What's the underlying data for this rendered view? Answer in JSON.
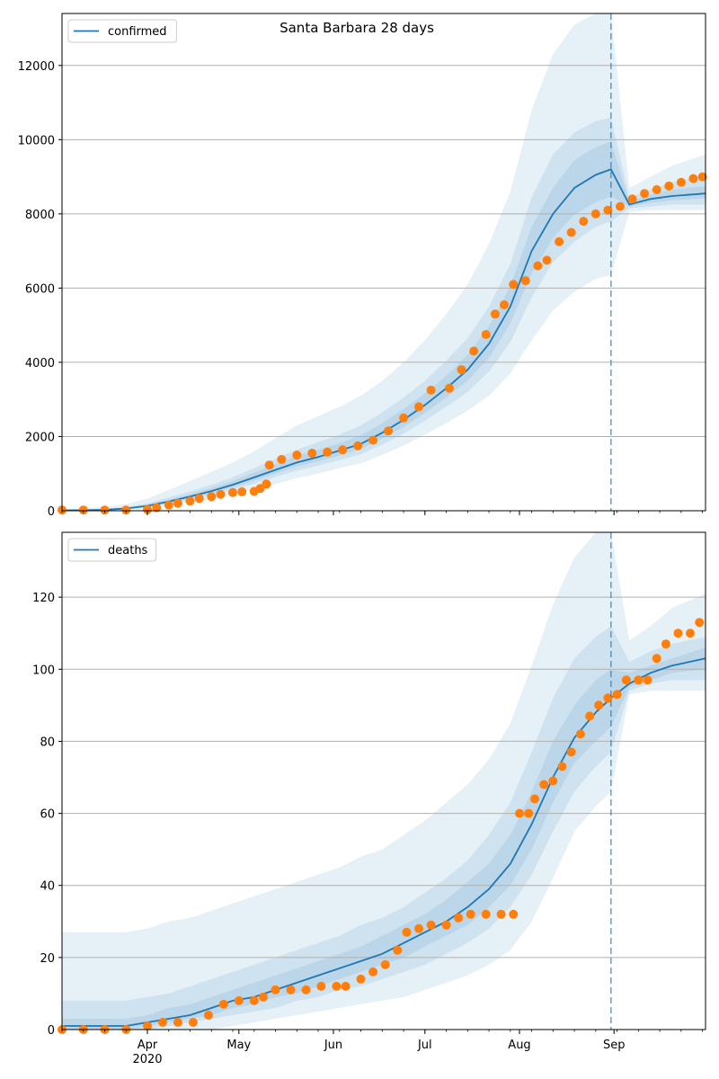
{
  "title": "Santa Barbara 28 days",
  "colors": {
    "model": "#1f77b4",
    "observed": "#ff7f0e",
    "band": "#1f77b4",
    "grid": "#b0b0b0"
  },
  "x_axis": {
    "ticks": [
      {
        "day": 31,
        "label": "Apr"
      },
      {
        "day": 61,
        "label": "May"
      },
      {
        "day": 92,
        "label": "Jun"
      },
      {
        "day": 122,
        "label": "Jul"
      },
      {
        "day": 153,
        "label": "Aug"
      },
      {
        "day": 184,
        "label": "Sep"
      }
    ],
    "year_label": "2020"
  },
  "chart_data": [
    {
      "type": "line",
      "name": "confirmed",
      "legend": "confirmed",
      "legend_position": "top-left",
      "grid": true,
      "forecast_start": "Aug 30",
      "x_range": [
        "Mar 3",
        "Sep 30"
      ],
      "ylim": [
        0,
        13400
      ],
      "yticks": [
        0,
        2000,
        4000,
        6000,
        8000,
        10000,
        12000
      ],
      "median": {
        "x": [
          "Mar 3",
          "Mar 10",
          "Mar 17",
          "Mar 24",
          "Mar 31",
          "Apr 7",
          "Apr 14",
          "Apr 21",
          "Apr 28",
          "May 5",
          "May 12",
          "May 19",
          "May 26",
          "Jun 2",
          "Jun 9",
          "Jun 16",
          "Jun 23",
          "Jun 30",
          "Jul 7",
          "Jul 14",
          "Jul 21",
          "Jul 28",
          "Aug 4",
          "Aug 11",
          "Aug 18",
          "Aug 25",
          "Aug 30",
          "Sep 5",
          "Sep 12",
          "Sep 19",
          "Sep 30"
        ],
        "y": [
          10,
          15,
          25,
          60,
          130,
          250,
          380,
          530,
          700,
          900,
          1100,
          1300,
          1450,
          1620,
          1800,
          2100,
          2450,
          2850,
          3300,
          3800,
          4500,
          5500,
          7000,
          8000,
          8700,
          9050,
          9200,
          8250,
          8400,
          8480,
          8550
        ]
      },
      "bands": [
        {
          "level": "outer",
          "x": [
            "Mar 3",
            "Mar 10",
            "Mar 17",
            "Mar 24",
            "Mar 31",
            "Apr 7",
            "Apr 14",
            "Apr 21",
            "Apr 28",
            "May 5",
            "May 12",
            "May 19",
            "May 26",
            "Jun 2",
            "Jun 9",
            "Jun 16",
            "Jun 23",
            "Jun 30",
            "Jul 7",
            "Jul 14",
            "Jul 21",
            "Jul 28",
            "Aug 4",
            "Aug 11",
            "Aug 18",
            "Aug 25",
            "Aug 30",
            "Sep 5",
            "Sep 12",
            "Sep 19",
            "Sep 30"
          ],
          "low": [
            0,
            0,
            0,
            20,
            60,
            130,
            220,
            320,
            430,
            560,
            720,
            880,
            1000,
            1150,
            1280,
            1500,
            1760,
            2050,
            2360,
            2700,
            3100,
            3700,
            4600,
            5400,
            5900,
            6250,
            6350,
            8050,
            8100,
            8100,
            8100
          ],
          "high": [
            40,
            60,
            100,
            180,
            330,
            560,
            800,
            1050,
            1300,
            1600,
            1950,
            2300,
            2550,
            2800,
            3100,
            3500,
            4000,
            4600,
            5300,
            6100,
            7200,
            8600,
            10800,
            12300,
            13100,
            13400,
            13400,
            8700,
            9000,
            9300,
            9600
          ]
        },
        {
          "level": "middle",
          "x": [
            "Mar 3",
            "Mar 10",
            "Mar 17",
            "Mar 24",
            "Mar 31",
            "Apr 7",
            "Apr 14",
            "Apr 21",
            "Apr 28",
            "May 5",
            "May 12",
            "May 19",
            "May 26",
            "Jun 2",
            "Jun 9",
            "Jun 16",
            "Jun 23",
            "Jun 30",
            "Jul 7",
            "Jul 14",
            "Jul 21",
            "Jul 28",
            "Aug 4",
            "Aug 11",
            "Aug 18",
            "Aug 25",
            "Aug 30",
            "Sep 5",
            "Sep 12",
            "Sep 19",
            "Sep 30"
          ],
          "low": [
            0,
            5,
            12,
            40,
            90,
            180,
            290,
            420,
            560,
            730,
            910,
            1080,
            1220,
            1370,
            1520,
            1780,
            2080,
            2430,
            2800,
            3200,
            3750,
            4550,
            5750,
            6700,
            7250,
            7650,
            7800,
            8150,
            8200,
            8250,
            8250
          ],
          "high": [
            20,
            30,
            50,
            100,
            200,
            360,
            520,
            700,
            900,
            1150,
            1400,
            1650,
            1850,
            2050,
            2300,
            2650,
            3050,
            3500,
            4050,
            4650,
            5500,
            6650,
            8450,
            9600,
            10200,
            10500,
            10600,
            8450,
            8650,
            8850,
            9050
          ]
        },
        {
          "level": "inner",
          "x": [
            "Mar 3",
            "Mar 10",
            "Mar 17",
            "Mar 24",
            "Mar 31",
            "Apr 7",
            "Apr 14",
            "Apr 21",
            "Apr 28",
            "May 5",
            "May 12",
            "May 19",
            "May 26",
            "Jun 2",
            "Jun 9",
            "Jun 16",
            "Jun 23",
            "Jun 30",
            "Jul 7",
            "Jul 14",
            "Jul 21",
            "Jul 28",
            "Aug 4",
            "Aug 11",
            "Aug 18",
            "Aug 25",
            "Aug 30",
            "Sep 5",
            "Sep 12",
            "Sep 19",
            "Sep 30"
          ],
          "low": [
            5,
            10,
            20,
            50,
            110,
            215,
            335,
            475,
            630,
            815,
            1000,
            1190,
            1330,
            1490,
            1660,
            1940,
            2260,
            2640,
            3050,
            3500,
            4120,
            5050,
            6400,
            7350,
            7980,
            8320,
            8470,
            8200,
            8300,
            8360,
            8420
          ],
          "high": [
            15,
            22,
            35,
            75,
            160,
            300,
            450,
            610,
            800,
            1030,
            1250,
            1480,
            1640,
            1820,
            2030,
            2360,
            2740,
            3160,
            3640,
            4200,
            4970,
            6050,
            7650,
            8700,
            9450,
            9800,
            9950,
            8320,
            8520,
            8650,
            8750
          ]
        }
      ],
      "observed": {
        "x": [
          "Mar 3",
          "Mar 10",
          "Mar 17",
          "Mar 24",
          "Mar 31",
          "Apr 3",
          "Apr 7",
          "Apr 10",
          "Apr 14",
          "Apr 17",
          "Apr 21",
          "Apr 24",
          "Apr 28",
          "May 1",
          "May 5",
          "May 7",
          "May 9",
          "May 10",
          "May 14",
          "May 19",
          "May 24",
          "May 29",
          "Jun 3",
          "Jun 8",
          "Jun 13",
          "Jun 18",
          "Jun 23",
          "Jun 28",
          "Jul 2",
          "Jul 8",
          "Jul 12",
          "Jul 16",
          "Jul 20",
          "Jul 23",
          "Jul 26",
          "Jul 29",
          "Aug 2",
          "Aug 6",
          "Aug 9",
          "Aug 13",
          "Aug 17",
          "Aug 21",
          "Aug 25",
          "Aug 29",
          "Sep 2",
          "Sep 6",
          "Sep 10",
          "Sep 14",
          "Sep 18",
          "Sep 22",
          "Sep 26",
          "Sep 29"
        ],
        "y": [
          20,
          20,
          20,
          20,
          30,
          80,
          150,
          200,
          260,
          330,
          380,
          440,
          490,
          510,
          520,
          600,
          720,
          1230,
          1380,
          1500,
          1550,
          1580,
          1640,
          1750,
          1900,
          2150,
          2500,
          2800,
          3250,
          3300,
          3800,
          4300,
          4750,
          5300,
          5550,
          6100,
          6200,
          6600,
          6750,
          7250,
          7500,
          7800,
          8000,
          8100,
          8200,
          8400,
          8550,
          8650,
          8750,
          8850,
          8950,
          9000
        ]
      }
    },
    {
      "type": "line",
      "name": "deaths",
      "legend": "deaths",
      "legend_position": "top-left",
      "grid": true,
      "forecast_start": "Aug 30",
      "x_range": [
        "Mar 3",
        "Sep 30"
      ],
      "ylim": [
        0,
        138
      ],
      "yticks": [
        0,
        20,
        40,
        60,
        80,
        100,
        120
      ],
      "median": {
        "x": [
          "Mar 3",
          "Mar 10",
          "Mar 17",
          "Mar 24",
          "Mar 31",
          "Apr 7",
          "Apr 14",
          "Apr 21",
          "Apr 28",
          "May 5",
          "May 12",
          "May 19",
          "May 26",
          "Jun 2",
          "Jun 9",
          "Jun 16",
          "Jun 23",
          "Jun 30",
          "Jul 7",
          "Jul 14",
          "Jul 21",
          "Jul 28",
          "Aug 4",
          "Aug 11",
          "Aug 18",
          "Aug 25",
          "Aug 30",
          "Sep 5",
          "Sep 12",
          "Sep 19",
          "Sep 30"
        ],
        "y": [
          1,
          1,
          1,
          1,
          2,
          3,
          4,
          6,
          8,
          9,
          11,
          13,
          15,
          17,
          19,
          21,
          24,
          27,
          30,
          34,
          39,
          46,
          57,
          70,
          81,
          88,
          92,
          96,
          99,
          101,
          103
        ]
      },
      "bands": [
        {
          "level": "outer",
          "x": [
            "Mar 3",
            "Mar 10",
            "Mar 17",
            "Mar 24",
            "Mar 31",
            "Apr 7",
            "Apr 14",
            "Apr 21",
            "Apr 28",
            "May 5",
            "May 12",
            "May 19",
            "May 26",
            "Jun 2",
            "Jun 9",
            "Jun 16",
            "Jun 23",
            "Jun 30",
            "Jul 7",
            "Jul 14",
            "Jul 21",
            "Jul 28",
            "Aug 4",
            "Aug 11",
            "Aug 18",
            "Aug 25",
            "Aug 30",
            "Sep 5",
            "Sep 12",
            "Sep 19",
            "Sep 30"
          ],
          "low": [
            0,
            0,
            0,
            0,
            0,
            0,
            0,
            0,
            1,
            2,
            3,
            4,
            5,
            6,
            7,
            8,
            9,
            11,
            13,
            15,
            18,
            22,
            30,
            42,
            55,
            62,
            66,
            93,
            94,
            94,
            94
          ],
          "high": [
            27,
            27,
            27,
            27,
            28,
            30,
            31,
            33,
            35,
            37,
            39,
            41,
            43,
            45,
            48,
            50,
            54,
            58,
            63,
            68,
            75,
            85,
            101,
            118,
            131,
            138,
            138,
            108,
            112,
            117,
            121
          ]
        },
        {
          "level": "middle",
          "x": [
            "Mar 3",
            "Mar 10",
            "Mar 17",
            "Mar 24",
            "Mar 31",
            "Apr 7",
            "Apr 14",
            "Apr 21",
            "Apr 28",
            "May 5",
            "May 12",
            "May 19",
            "May 26",
            "Jun 2",
            "Jun 9",
            "Jun 16",
            "Jun 23",
            "Jun 30",
            "Jul 7",
            "Jul 14",
            "Jul 21",
            "Jul 28",
            "Aug 4",
            "Aug 11",
            "Aug 18",
            "Aug 25",
            "Aug 30",
            "Sep 5",
            "Sep 12",
            "Sep 19",
            "Sep 30"
          ],
          "low": [
            0,
            0,
            0,
            0,
            0,
            1,
            2,
            3,
            4,
            5,
            6,
            8,
            9,
            11,
            12,
            14,
            16,
            18,
            21,
            24,
            28,
            34,
            43,
            55,
            66,
            73,
            77,
            94,
            96,
            97,
            97
          ],
          "high": [
            8,
            8,
            8,
            8,
            9,
            10,
            12,
            14,
            16,
            18,
            20,
            22,
            24,
            26,
            29,
            31,
            34,
            38,
            42,
            47,
            54,
            63,
            77,
            92,
            103,
            109,
            112,
            102,
            105,
            107,
            109
          ]
        },
        {
          "level": "inner",
          "x": [
            "Mar 3",
            "Mar 10",
            "Mar 17",
            "Mar 24",
            "Mar 31",
            "Apr 7",
            "Apr 14",
            "Apr 21",
            "Apr 28",
            "May 5",
            "May 12",
            "May 19",
            "May 26",
            "Jun 2",
            "Jun 9",
            "Jun 16",
            "Jun 23",
            "Jun 30",
            "Jul 7",
            "Jul 14",
            "Jul 21",
            "Jul 28",
            "Aug 4",
            "Aug 11",
            "Aug 18",
            "Aug 25",
            "Aug 30",
            "Sep 5",
            "Sep 12",
            "Sep 19",
            "Sep 30"
          ],
          "low": [
            0,
            0,
            0,
            0,
            1,
            2,
            3,
            4,
            6,
            7,
            9,
            10,
            12,
            14,
            16,
            18,
            20,
            23,
            26,
            29,
            34,
            40,
            50,
            63,
            74,
            80,
            84,
            95,
            97,
            99,
            100
          ],
          "high": [
            3,
            3,
            3,
            3,
            4,
            6,
            7,
            9,
            11,
            13,
            15,
            17,
            19,
            21,
            23,
            26,
            29,
            32,
            36,
            41,
            46,
            54,
            66,
            80,
            90,
            97,
            100,
            99,
            101,
            103,
            106
          ]
        }
      ],
      "observed": {
        "x": [
          "Mar 3",
          "Mar 10",
          "Mar 17",
          "Mar 24",
          "Mar 31",
          "Apr 5",
          "Apr 10",
          "Apr 15",
          "Apr 20",
          "Apr 25",
          "Apr 30",
          "May 5",
          "May 8",
          "May 12",
          "May 17",
          "May 22",
          "May 27",
          "Jun 1",
          "Jun 4",
          "Jun 9",
          "Jun 13",
          "Jun 17",
          "Jun 21",
          "Jun 24",
          "Jun 28",
          "Jul 2",
          "Jul 7",
          "Jul 11",
          "Jul 15",
          "Jul 20",
          "Jul 25",
          "Jul 29",
          "Jul 31",
          "Aug 3",
          "Aug 5",
          "Aug 8",
          "Aug 11",
          "Aug 14",
          "Aug 17",
          "Aug 20",
          "Aug 23",
          "Aug 26",
          "Aug 29",
          "Sep 1",
          "Sep 4",
          "Sep 8",
          "Sep 11",
          "Sep 14",
          "Sep 17",
          "Sep 21",
          "Sep 25",
          "Sep 28"
        ],
        "y": [
          0,
          0,
          0,
          0,
          1,
          2,
          2,
          2,
          4,
          7,
          8,
          8,
          9,
          11,
          11,
          11,
          12,
          12,
          12,
          14,
          16,
          18,
          22,
          27,
          28,
          29,
          29,
          31,
          32,
          32,
          32,
          32,
          60,
          60,
          64,
          68,
          69,
          73,
          77,
          82,
          87,
          90,
          92,
          93,
          97,
          97,
          97,
          103,
          107,
          110,
          110,
          113
        ]
      }
    }
  ]
}
